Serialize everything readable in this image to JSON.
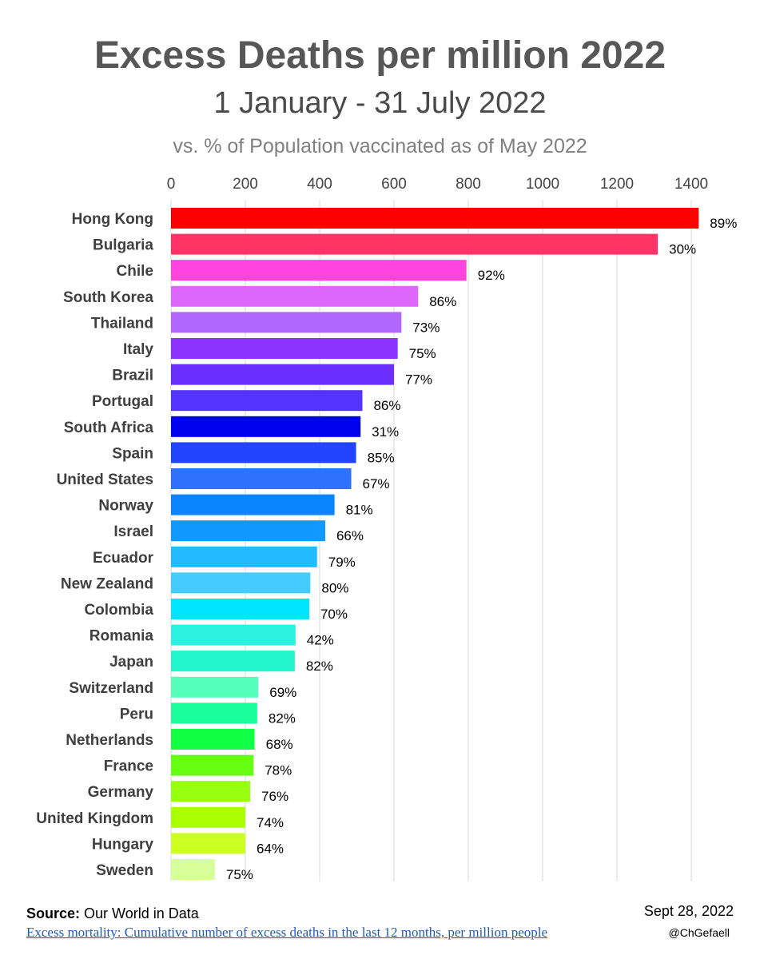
{
  "header": {
    "title": "Excess Deaths per million 2022",
    "subtitle": "1 January - 31 July 2022",
    "subtitle2": "vs. % of Population vaccinated as of May 2022"
  },
  "footer": {
    "source_label": "Source:",
    "source_text": " Our World in Data",
    "source_link": "Excess mortality: Cumulative number of excess deaths in the last 12 months, per million people",
    "date": "Sept 28, 2022",
    "handle": "@ChGefaell"
  },
  "chart_data": {
    "type": "bar",
    "orientation": "horizontal",
    "x_axis_position": "top",
    "xlim": [
      0,
      1500
    ],
    "xticks": [
      0,
      200,
      400,
      600,
      800,
      1000,
      1200,
      1400
    ],
    "grid": true,
    "categories": [
      "Hong Kong",
      "Bulgaria",
      "Chile",
      "South Korea",
      "Thailand",
      "Italy",
      "Brazil",
      "Portugal",
      "South Africa",
      "Spain",
      "United States",
      "Norway",
      "Israel",
      "Ecuador",
      "New Zealand",
      "Colombia",
      "Romania",
      "Japan",
      "Switzerland",
      "Peru",
      "Netherlands",
      "France",
      "Germany",
      "United Kingdom",
      "Hungary",
      "Sweden"
    ],
    "values": [
      1420,
      1310,
      795,
      665,
      620,
      610,
      600,
      515,
      510,
      498,
      485,
      440,
      415,
      393,
      375,
      372,
      335,
      333,
      235,
      232,
      225,
      222,
      213,
      200,
      200,
      118
    ],
    "data_labels": [
      "89%",
      "30%",
      "92%",
      "86%",
      "73%",
      "75%",
      "77%",
      "86%",
      "31%",
      "85%",
      "67%",
      "81%",
      "66%",
      "79%",
      "80%",
      "70%",
      "42%",
      "82%",
      "69%",
      "82%",
      "68%",
      "78%",
      "76%",
      "74%",
      "64%",
      "75%"
    ],
    "colors": [
      "#ff0000",
      "#ff3366",
      "#ff44dd",
      "#dd66ff",
      "#b066ff",
      "#8c33ff",
      "#6a2eff",
      "#5533ff",
      "#0000ee",
      "#2244ff",
      "#2f70ff",
      "#0a84ff",
      "#1199ff",
      "#22bbff",
      "#44ccff",
      "#00e5ff",
      "#2cf0e0",
      "#22f5cc",
      "#55ffbb",
      "#1aff99",
      "#11ff44",
      "#66ff11",
      "#99ff11",
      "#aaff00",
      "#ccff22",
      "#d6ff99"
    ]
  }
}
